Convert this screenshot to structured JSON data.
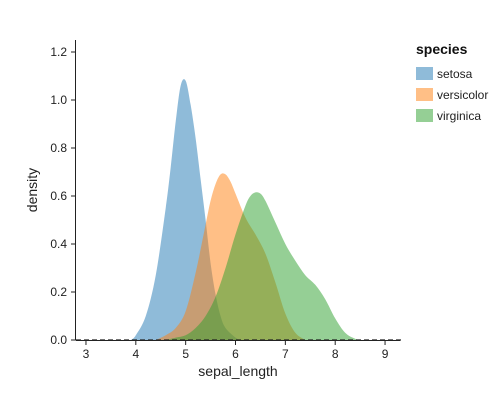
{
  "chart_data": {
    "type": "area",
    "title": "",
    "xlabel": "sepal_length",
    "ylabel": "density",
    "xlim": [
      2.8,
      9.3
    ],
    "ylim": [
      0,
      1.25
    ],
    "xticks": [
      3,
      4,
      5,
      6,
      7,
      8,
      9
    ],
    "yticks": [
      0.0,
      0.2,
      0.4,
      0.6,
      0.8,
      1.0,
      1.2
    ],
    "ytick_labels": [
      "0.0",
      "0.2",
      "0.4",
      "0.6",
      "0.8",
      "1.0",
      "1.2"
    ],
    "grid": false,
    "legend": {
      "title": "species",
      "position": "top-right"
    },
    "series": [
      {
        "name": "setosa",
        "color": "#1f77b4",
        "x": [
          3.9,
          4.0,
          4.2,
          4.4,
          4.6,
          4.7,
          4.8,
          4.9,
          5.0,
          5.1,
          5.2,
          5.3,
          5.4,
          5.5,
          5.6,
          5.7,
          5.8,
          6.0,
          6.1
        ],
        "values": [
          0.0,
          0.02,
          0.1,
          0.27,
          0.55,
          0.72,
          0.91,
          1.06,
          1.08,
          0.98,
          0.84,
          0.67,
          0.5,
          0.32,
          0.19,
          0.1,
          0.05,
          0.01,
          0.0
        ]
      },
      {
        "name": "versicolor",
        "color": "#ff7f0e",
        "x": [
          4.4,
          4.6,
          4.8,
          5.0,
          5.2,
          5.4,
          5.5,
          5.6,
          5.7,
          5.8,
          5.9,
          6.0,
          6.2,
          6.4,
          6.6,
          6.8,
          7.0,
          7.2,
          7.4
        ],
        "values": [
          0.0,
          0.02,
          0.05,
          0.12,
          0.28,
          0.48,
          0.58,
          0.65,
          0.69,
          0.69,
          0.66,
          0.61,
          0.51,
          0.44,
          0.36,
          0.24,
          0.11,
          0.03,
          0.0
        ]
      },
      {
        "name": "virginica",
        "color": "#2ca02c",
        "x": [
          4.6,
          4.8,
          5.0,
          5.2,
          5.4,
          5.6,
          5.8,
          6.0,
          6.2,
          6.3,
          6.4,
          6.5,
          6.6,
          6.8,
          7.0,
          7.2,
          7.4,
          7.6,
          7.8,
          8.0,
          8.2,
          8.4,
          8.5
        ],
        "values": [
          0.0,
          0.01,
          0.02,
          0.05,
          0.1,
          0.18,
          0.3,
          0.44,
          0.56,
          0.6,
          0.615,
          0.61,
          0.58,
          0.49,
          0.4,
          0.33,
          0.27,
          0.23,
          0.17,
          0.09,
          0.03,
          0.005,
          0.0
        ]
      }
    ]
  }
}
